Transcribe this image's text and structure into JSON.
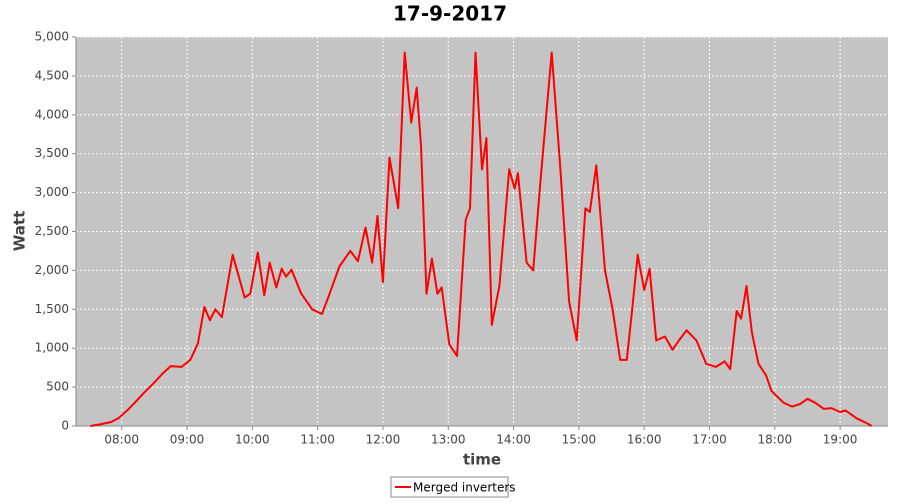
{
  "chart_data": {
    "type": "line",
    "title": "17-9-2017",
    "x_label": "time",
    "y_label": "Watt",
    "x": [
      "07:31",
      "07:40",
      "07:50",
      "07:57",
      "08:05",
      "08:12",
      "08:20",
      "08:30",
      "08:38",
      "08:45",
      "08:55",
      "09:03",
      "09:10",
      "09:16",
      "09:21",
      "09:26",
      "09:32",
      "09:42",
      "09:53",
      "09:58",
      "10:05",
      "10:11",
      "10:16",
      "10:22",
      "10:27",
      "10:31",
      "10:36",
      "10:45",
      "10:55",
      "11:04",
      "11:11",
      "11:20",
      "11:30",
      "11:37",
      "11:44",
      "11:50",
      "11:55",
      "12:00",
      "12:06",
      "12:14",
      "12:20",
      "12:26",
      "12:31",
      "12:35",
      "12:40",
      "12:45",
      "12:50",
      "12:54",
      "13:01",
      "13:08",
      "13:16",
      "13:20",
      "13:25",
      "13:31",
      "13:35",
      "13:40",
      "13:47",
      "13:56",
      "14:01",
      "14:04",
      "14:12",
      "14:18",
      "14:25",
      "14:35",
      "14:43",
      "14:51",
      "14:58",
      "15:06",
      "15:10",
      "15:16",
      "15:24",
      "15:31",
      "15:38",
      "15:44",
      "15:49",
      "15:54",
      "16:00",
      "16:05",
      "16:11",
      "16:19",
      "16:26",
      "16:32",
      "16:39",
      "16:48",
      "16:57",
      "17:06",
      "17:14",
      "17:19",
      "17:25",
      "17:29",
      "17:34",
      "17:39",
      "17:45",
      "17:52",
      "17:57",
      "18:08",
      "18:16",
      "18:23",
      "18:30",
      "18:37",
      "18:45",
      "18:52",
      "19:00",
      "19:05",
      "19:15",
      "19:24",
      "19:29"
    ],
    "series": [
      {
        "name": "Merged inverters",
        "color": "#ff0000",
        "values": [
          0,
          20,
          50,
          100,
          200,
          300,
          420,
          560,
          680,
          770,
          760,
          850,
          1060,
          1530,
          1360,
          1500,
          1400,
          2200,
          1650,
          1700,
          2230,
          1680,
          2100,
          1780,
          2020,
          1920,
          2010,
          1700,
          1500,
          1440,
          1700,
          2050,
          2250,
          2120,
          2550,
          2100,
          2700,
          1850,
          3450,
          2800,
          4800,
          3900,
          4350,
          3600,
          1700,
          2150,
          1700,
          1780,
          1050,
          900,
          2650,
          2800,
          4800,
          3300,
          3700,
          1300,
          1800,
          3300,
          3050,
          3250,
          2100,
          2000,
          3200,
          4800,
          3300,
          1600,
          1100,
          2800,
          2750,
          3350,
          2000,
          1500,
          850,
          850,
          1500,
          2200,
          1750,
          2020,
          1100,
          1150,
          980,
          1100,
          1230,
          1100,
          800,
          760,
          830,
          730,
          1480,
          1380,
          1800,
          1200,
          800,
          650,
          450,
          300,
          250,
          280,
          350,
          300,
          220,
          230,
          180,
          200,
          100,
          40,
          0
        ]
      }
    ],
    "xlim": [
      "07:18",
      "19:44"
    ],
    "xticks": [
      "08:00",
      "09:00",
      "10:00",
      "11:00",
      "12:00",
      "13:00",
      "14:00",
      "15:00",
      "16:00",
      "17:00",
      "18:00",
      "19:00"
    ],
    "ylim": [
      0,
      5000
    ],
    "yticks": [
      0,
      500,
      {
        "value": 1000,
        "label": "1,000"
      },
      {
        "value": 1500,
        "label": "1,500"
      },
      {
        "value": 2000,
        "label": "2,000"
      },
      {
        "value": 2500,
        "label": "2,500"
      },
      {
        "value": 3000,
        "label": "3,000"
      },
      {
        "value": 3500,
        "label": "3,500"
      },
      {
        "value": 4000,
        "label": "4,000"
      },
      {
        "value": 4500,
        "label": "4,500"
      },
      {
        "value": 5000,
        "label": "5,000"
      }
    ],
    "grid": true,
    "legend": "bottom"
  }
}
